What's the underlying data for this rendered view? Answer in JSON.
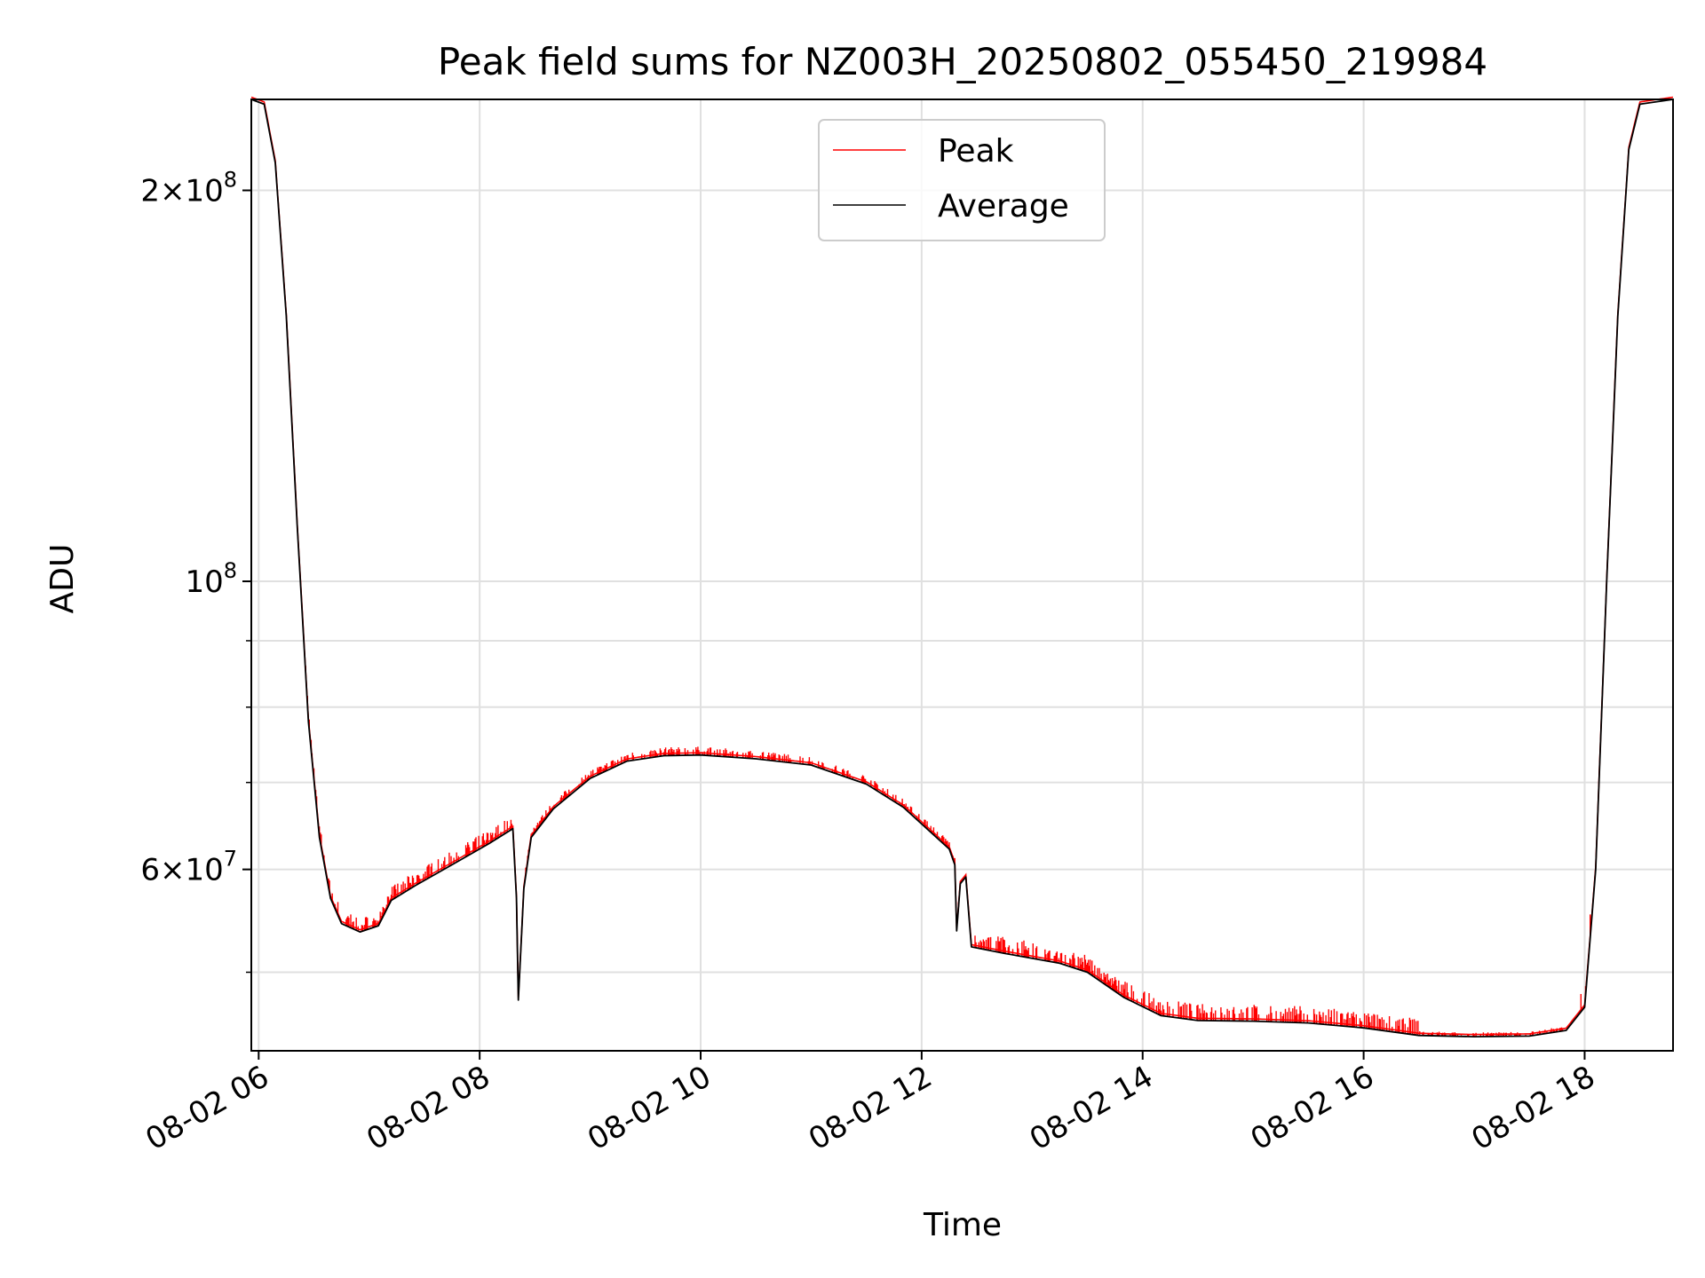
{
  "chart_data": {
    "type": "line",
    "title": "Peak field sums for NZ003H_20250802_055450_219984",
    "xlabel": "Time",
    "ylabel": "ADU",
    "y_scale": "log",
    "ylim": [
      43500000,
      235000000
    ],
    "xlim": [
      "08-02 05:56",
      "08-02 18:48"
    ],
    "x_ticks": [
      {
        "time": "08-02 06:00",
        "label": "08-02 06"
      },
      {
        "time": "08-02 08:00",
        "label": "08-02 08"
      },
      {
        "time": "08-02 10:00",
        "label": "08-02 10"
      },
      {
        "time": "08-02 12:00",
        "label": "08-02 12"
      },
      {
        "time": "08-02 14:00",
        "label": "08-02 14"
      },
      {
        "time": "08-02 16:00",
        "label": "08-02 16"
      },
      {
        "time": "08-02 18:00",
        "label": "08-02 18"
      }
    ],
    "y_major_ticks": [
      {
        "value": 60000000,
        "base": "6×10",
        "exp": "7"
      },
      {
        "value": 100000000,
        "base": "10",
        "exp": "8"
      },
      {
        "value": 200000000,
        "base": "2×10",
        "exp": "8"
      }
    ],
    "y_minor_ticks": [
      50000000,
      70000000,
      80000000,
      90000000
    ],
    "grid": true,
    "legend": {
      "position": "top-center",
      "entries": [
        {
          "name": "Peak",
          "color": "#ff0000"
        },
        {
          "name": "Average",
          "color": "#000000"
        }
      ]
    },
    "series": [
      {
        "name": "Average",
        "color": "#000000",
        "points": [
          [
            "08-02 05:56",
            235000000
          ],
          [
            "08-02 06:03",
            233000000
          ],
          [
            "08-02 06:09",
            210000000
          ],
          [
            "08-02 06:15",
            160000000
          ],
          [
            "08-02 06:21",
            110000000
          ],
          [
            "08-02 06:27",
            78000000
          ],
          [
            "08-02 06:33",
            63500000
          ],
          [
            "08-02 06:39",
            57000000
          ],
          [
            "08-02 06:45",
            54500000
          ],
          [
            "08-02 06:55",
            53700000
          ],
          [
            "08-02 07:05",
            54300000
          ],
          [
            "08-02 07:12",
            56800000
          ],
          [
            "08-02 07:25",
            58300000
          ],
          [
            "08-02 07:45",
            60500000
          ],
          [
            "08-02 08:05",
            62800000
          ],
          [
            "08-02 08:18",
            64500000
          ],
          [
            "08-02 08:20",
            57000000
          ],
          [
            "08-02 08:21",
            47600000
          ],
          [
            "08-02 08:24",
            58000000
          ],
          [
            "08-02 08:28",
            63500000
          ],
          [
            "08-02 08:40",
            66800000
          ],
          [
            "08-02 09:00",
            70500000
          ],
          [
            "08-02 09:20",
            72700000
          ],
          [
            "08-02 09:40",
            73400000
          ],
          [
            "08-02 10:00",
            73500000
          ],
          [
            "08-02 10:30",
            73000000
          ],
          [
            "08-02 11:00",
            72200000
          ],
          [
            "08-02 11:30",
            69800000
          ],
          [
            "08-02 11:50",
            67000000
          ],
          [
            "08-02 12:15",
            62200000
          ],
          [
            "08-02 12:18",
            60500000
          ],
          [
            "08-02 12:19",
            53800000
          ],
          [
            "08-02 12:21",
            58500000
          ],
          [
            "08-02 12:24",
            59200000
          ],
          [
            "08-02 12:27",
            52300000
          ],
          [
            "08-02 12:45",
            51700000
          ],
          [
            "08-02 13:15",
            50800000
          ],
          [
            "08-02 13:30",
            50000000
          ],
          [
            "08-02 13:50",
            47800000
          ],
          [
            "08-02 14:10",
            46300000
          ],
          [
            "08-02 14:30",
            45900000
          ],
          [
            "08-02 15:00",
            45850000
          ],
          [
            "08-02 15:30",
            45700000
          ],
          [
            "08-02 16:00",
            45300000
          ],
          [
            "08-02 16:30",
            44700000
          ],
          [
            "08-02 17:00",
            44600000
          ],
          [
            "08-02 17:30",
            44650000
          ],
          [
            "08-02 17:50",
            45100000
          ],
          [
            "08-02 18:00",
            47000000
          ],
          [
            "08-02 18:06",
            60000000
          ],
          [
            "08-02 18:12",
            100000000
          ],
          [
            "08-02 18:18",
            160000000
          ],
          [
            "08-02 18:24",
            215000000
          ],
          [
            "08-02 18:30",
            233000000
          ],
          [
            "08-02 18:48",
            235000000
          ]
        ]
      },
      {
        "name": "Peak",
        "color": "#ff0000",
        "spike_spans": [
          {
            "from": "08-02 06:25",
            "to": "08-02 08:18",
            "amplitude": 0.025
          },
          {
            "from": "08-02 08:25",
            "to": "08-02 12:20",
            "amplitude": 0.015
          },
          {
            "from": "08-02 12:27",
            "to": "08-02 16:30",
            "amplitude": 0.03
          },
          {
            "from": "08-02 16:30",
            "to": "08-02 17:50",
            "amplitude": 0.008
          },
          {
            "from": "08-02 17:58",
            "to": "08-02 18:03",
            "amplitude": 0.05
          }
        ]
      }
    ]
  }
}
